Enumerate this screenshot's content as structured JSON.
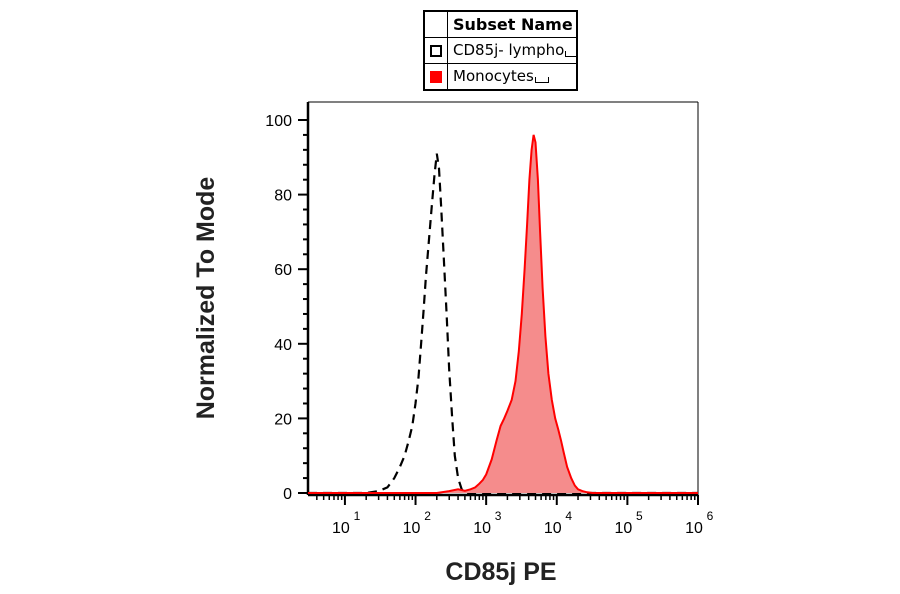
{
  "legend": {
    "title": "Subset Name",
    "entries": [
      {
        "label": "CD85j- lympho",
        "style": "dashed-open",
        "color": "#000000"
      },
      {
        "label": "Monocytes",
        "style": "filled",
        "color": "#ff0000"
      }
    ]
  },
  "chart_data": {
    "type": "area",
    "xlabel": "CD85j PE",
    "ylabel": "Normalized To Mode",
    "x_scale": "log",
    "xlim": [
      3,
      1000000
    ],
    "ylim": [
      0,
      100
    ],
    "x_ticks": [
      {
        "value": 10,
        "base": "10",
        "exp": "1"
      },
      {
        "value": 100,
        "base": "10",
        "exp": "2"
      },
      {
        "value": 1000,
        "base": "10",
        "exp": "3"
      },
      {
        "value": 10000,
        "base": "10",
        "exp": "4"
      },
      {
        "value": 100000,
        "base": "10",
        "exp": "5"
      },
      {
        "value": 1000000,
        "base": "10",
        "exp": "6"
      }
    ],
    "y_ticks": [
      "0",
      "20",
      "40",
      "60",
      "80",
      "100"
    ],
    "y_tick_values": [
      0,
      20,
      40,
      60,
      80,
      100
    ],
    "series": [
      {
        "name": "CD85j- lympho",
        "style": "dashed",
        "color": "#000000",
        "x": [
          3,
          20,
          30,
          40,
          50,
          60,
          70,
          80,
          90,
          100,
          110,
          120,
          130,
          140,
          155,
          170,
          185,
          200,
          215,
          230,
          250,
          275,
          300,
          330,
          360,
          400,
          450,
          500,
          1000000
        ],
        "y": [
          0,
          0,
          0.5,
          1.5,
          4,
          7,
          10,
          14,
          18,
          24,
          31,
          40,
          49,
          58,
          68,
          77,
          85,
          91,
          87,
          77,
          64,
          48,
          33,
          20,
          10,
          4,
          1,
          0,
          0
        ]
      },
      {
        "name": "Monocytes",
        "style": "filled",
        "color": "#ff0000",
        "fill": "#f58c8c",
        "x": [
          3,
          200,
          300,
          400,
          500,
          600,
          700,
          800,
          900,
          1000,
          1200,
          1400,
          1600,
          1800,
          2000,
          2300,
          2600,
          2900,
          3200,
          3500,
          3800,
          4100,
          4400,
          4700,
          5000,
          5400,
          5800,
          6300,
          6900,
          7600,
          8500,
          9500,
          10500,
          11500,
          12500,
          14000,
          16000,
          18000,
          20000,
          23000,
          27000,
          32000,
          1000000
        ],
        "y": [
          0,
          0,
          0.5,
          1,
          0.6,
          1,
          1.5,
          2.5,
          3.5,
          5,
          9,
          14,
          18,
          20,
          22,
          25,
          30,
          38,
          48,
          60,
          72,
          84,
          92,
          96,
          94,
          84,
          70,
          55,
          42,
          32,
          25,
          20,
          17,
          14,
          11,
          7,
          4,
          2,
          1,
          0.5,
          0.2,
          0,
          0
        ]
      }
    ],
    "grid": false,
    "legend_position": "top-center"
  }
}
